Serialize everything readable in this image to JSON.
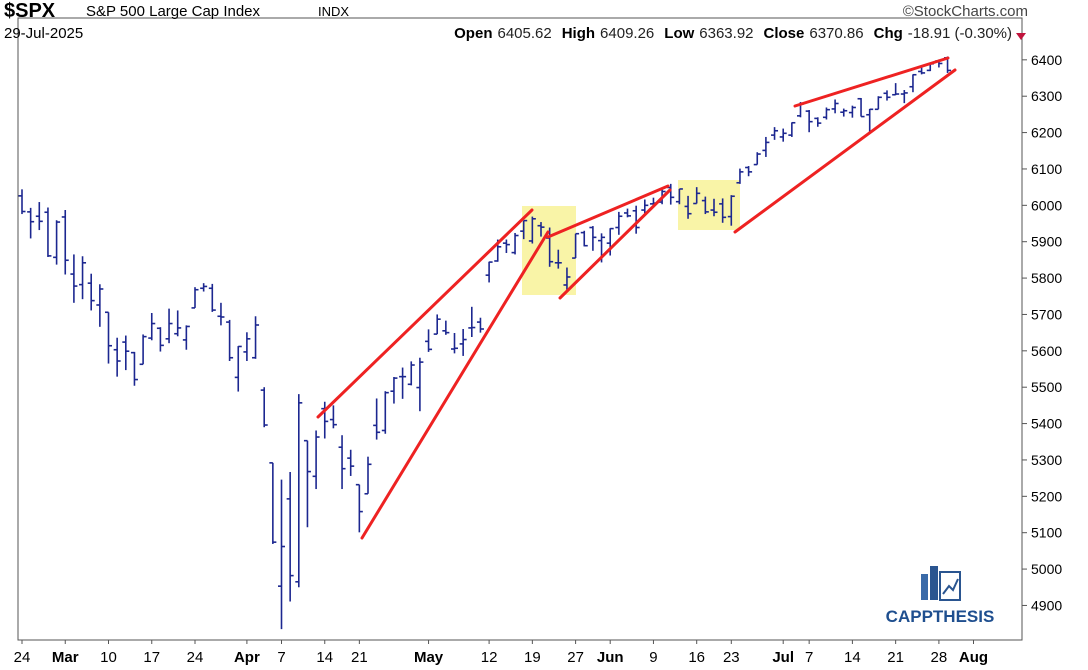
{
  "chart_data": {
    "type": "ohlc",
    "title": "$SPX",
    "subtitle": "S&P 500 Large Cap Index",
    "exchange": "INDX",
    "date": "29-Jul-2025",
    "source": "©StockCharts.com",
    "watermark": "CAPPTHESIS",
    "quote": [
      {
        "label": "Open",
        "value": 6405.62
      },
      {
        "label": "High",
        "value": 6409.26
      },
      {
        "label": "Low",
        "value": 6363.92
      },
      {
        "label": "Close",
        "value": 6370.86
      },
      {
        "label": "Chg",
        "value": "-18.91 (-0.30%)"
      }
    ],
    "color": "#1c2790",
    "ylim": [
      4805,
      6515
    ],
    "yticks": [
      4900,
      5000,
      5100,
      5200,
      5300,
      5400,
      5500,
      5600,
      5700,
      5800,
      5900,
      6000,
      6100,
      6200,
      6300,
      6400
    ],
    "categories": [
      "24",
      null,
      null,
      null,
      null,
      "Mar",
      null,
      null,
      null,
      null,
      "10",
      null,
      null,
      null,
      null,
      "17",
      null,
      null,
      null,
      null,
      "24",
      null,
      null,
      null,
      null,
      null,
      "Apr",
      null,
      null,
      null,
      "7",
      null,
      null,
      null,
      null,
      "14",
      null,
      null,
      null,
      "21",
      null,
      null,
      null,
      null,
      null,
      null,
      null,
      "May",
      null,
      null,
      null,
      null,
      null,
      null,
      "12",
      null,
      null,
      null,
      null,
      "19",
      null,
      null,
      null,
      null,
      "27",
      null,
      null,
      null,
      "Jun",
      null,
      null,
      null,
      null,
      "9",
      null,
      null,
      null,
      null,
      "16",
      null,
      null,
      null,
      "23",
      null,
      null,
      null,
      null,
      null,
      "Jul",
      null,
      null,
      "7",
      null,
      null,
      null,
      null,
      "14",
      null,
      null,
      null,
      null,
      "21",
      null,
      null,
      null,
      null,
      "28",
      null,
      null,
      null,
      "Aug"
    ],
    "open": [
      6026,
      5982,
      5970,
      5981,
      5857,
      5968,
      5811,
      5782,
      5786,
      5726,
      5706,
      5603,
      5624,
      5595,
      5563,
      5635,
      5662,
      5633,
      5647,
      5630,
      5718,
      5772,
      5772,
      5695,
      5679,
      5527,
      5597,
      5581,
      5492,
      5292,
      4953,
      5193,
      4965,
      5353,
      5255,
      5441,
      5411,
      5335,
      5305,
      5232,
      5207,
      5395,
      5381,
      5489,
      5529,
      5508,
      5499,
      5626,
      5646,
      5655,
      5605,
      5619,
      5663,
      5679,
      5808,
      5847,
      5896,
      5870,
      5929,
      5902,
      5944,
      5910,
      5842,
      5781,
      5855,
      5925,
      5939,
      5903,
      5896,
      5939,
      5979,
      5985,
      5987,
      6004,
      6009,
      6049,
      6010,
      5997,
      6005,
      6013,
      5987,
      6004,
      5969,
      6062,
      6104,
      6112,
      6151,
      6193,
      6188,
      6193,
      6246,
      6259,
      6239,
      6242,
      6265,
      6256,
      6255,
      6293,
      6249,
      6264,
      6308,
      6304,
      6306,
      6326,
      6368,
      6371,
      6397,
      6405.62,
      null,
      null,
      null
    ],
    "high": [
      6044,
      5993,
      6009,
      5994,
      5959,
      5987,
      5865,
      5860,
      5812,
      5783,
      5706,
      5636,
      5642,
      5597,
      5645,
      5704,
      5665,
      5716,
      5711,
      5670,
      5775,
      5786,
      5784,
      5732,
      5685,
      5613,
      5651,
      5695,
      5500,
      5292,
      5246,
      5267,
      5481,
      5353,
      5381,
      5460,
      5450,
      5368,
      5328,
      5232,
      5309,
      5469,
      5489,
      5528,
      5554,
      5571,
      5581,
      5659,
      5700,
      5683,
      5649,
      5660,
      5721,
      5691,
      5845,
      5906,
      5906,
      5924,
      5958,
      5969,
      5954,
      5939,
      5878,
      5829,
      5922,
      5930,
      5943,
      5923,
      5937,
      5982,
      5991,
      5999,
      6016,
      6021,
      6043,
      6059,
      6045,
      6026,
      6050,
      6024,
      6018,
      6019,
      6028,
      6101,
      6108,
      6146,
      6188,
      6215,
      6211,
      6228,
      6284,
      6262,
      6242,
      6269,
      6291,
      6266,
      6274,
      6295,
      6265,
      6300,
      6316,
      6336,
      6317,
      6360,
      6381,
      6390,
      6401,
      6409.26,
      null,
      null,
      null
    ],
    "low": [
      5976,
      5909,
      5932,
      5858,
      5837,
      5810,
      5732,
      5742,
      5711,
      5666,
      5565,
      5529,
      5547,
      5504,
      5563,
      5629,
      5598,
      5621,
      5640,
      5603,
      5718,
      5763,
      5707,
      5670,
      5572,
      5488,
      5572,
      5578,
      5390,
      5069,
      4835,
      4911,
      4950,
      5115,
      5220,
      5359,
      5387,
      5220,
      5256,
      5101,
      5207,
      5356,
      5372,
      5455,
      5468,
      5505,
      5434,
      5597,
      5646,
      5644,
      5593,
      5586,
      5638,
      5650,
      5788,
      5845,
      5869,
      5865,
      5907,
      5895,
      5914,
      5831,
      5826,
      5768,
      5855,
      5887,
      5875,
      5843,
      5862,
      5919,
      5967,
      5922,
      5978,
      5994,
      6003,
      6002,
      6003,
      5963,
      6005,
      5976,
      5970,
      5952,
      5944,
      6059,
      6080,
      6112,
      6133,
      6180,
      6175,
      6188,
      6242,
      6201,
      6216,
      6236,
      6253,
      6244,
      6241,
      6244,
      6202,
      6264,
      6288,
      6303,
      6281,
      6311,
      6360,
      6369,
      6379,
      6363.92,
      null,
      null,
      null
    ],
    "close": [
      5983,
      5955,
      5956,
      5861,
      5954,
      5849,
      5778,
      5842,
      5738,
      5770,
      5614,
      5572,
      5599,
      5521,
      5639,
      5675,
      5615,
      5675,
      5663,
      5667,
      5768,
      5777,
      5712,
      5693,
      5581,
      5612,
      5633,
      5671,
      5396,
      5074,
      5062,
      4982,
      5457,
      5268,
      5363,
      5406,
      5397,
      5276,
      5283,
      5158,
      5288,
      5376,
      5485,
      5525,
      5529,
      5561,
      5569,
      5604,
      5687,
      5650,
      5607,
      5631,
      5664,
      5660,
      5844,
      5886,
      5892,
      5917,
      5958,
      5963,
      5940,
      5845,
      5842,
      5803,
      5922,
      5889,
      5912,
      5912,
      5936,
      5970,
      5971,
      5939,
      6000,
      6006,
      6038,
      6022,
      6045,
      5977,
      6033,
      5982,
      5981,
      5967,
      6025,
      6092,
      6092,
      6141,
      6173,
      6205,
      6198,
      6227,
      6279,
      6230,
      6226,
      6263,
      6280,
      6260,
      6269,
      6244,
      6264,
      6297,
      6297,
      6306,
      6309,
      6359,
      6364,
      6389,
      6390,
      6370.86,
      null,
      null,
      null
    ]
  }
}
